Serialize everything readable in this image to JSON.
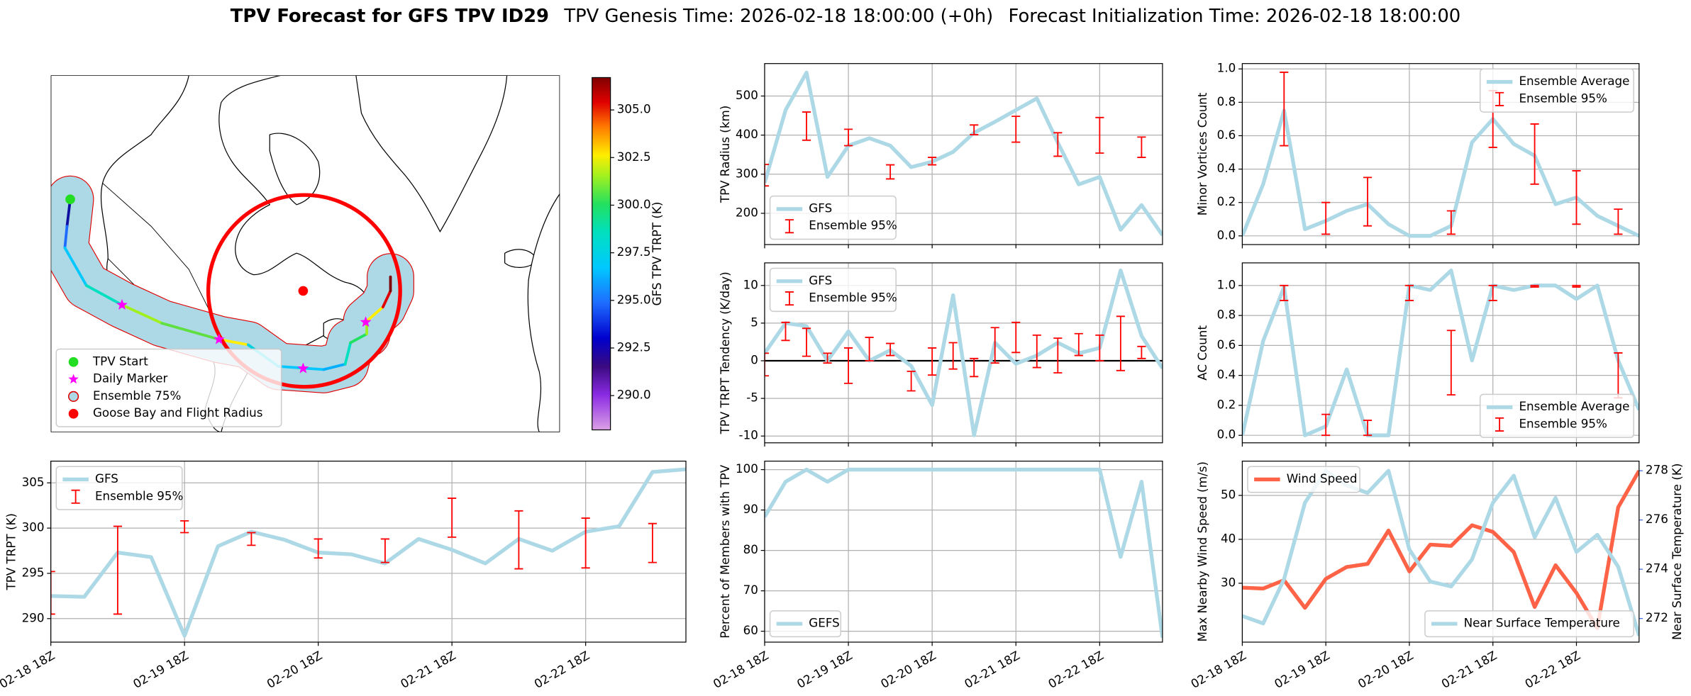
{
  "header": {
    "title": "TPV Forecast for GFS TPV ID29",
    "genesis": "TPV Genesis Time: 2026-02-18 18:00:00 (+0h)",
    "initialization": "Forecast Initialization Time: 2026-02-18 18:00:00"
  },
  "chart_data": [
    {
      "type": "map",
      "legend": "lower left",
      "items": [
        {
          "name": "TPV Start",
          "color": "#22dd22",
          "marker": "circle"
        },
        {
          "name": "Daily Marker",
          "color": "#ff00ff",
          "marker": "star"
        },
        {
          "name": "Ensemble 75%",
          "color": "#add8e6",
          "marker": "circle-edge"
        },
        {
          "name": "Goose Bay and Flight Radius",
          "color": "#ff0000",
          "marker": "circle"
        }
      ],
      "colorbar": {
        "label": "GFS TPV TRPT (K)",
        "lim": [
          288.2,
          306.7
        ],
        "ticks": [
          {
            "value": 290,
            "label": "290.0"
          },
          {
            "value": 292.5,
            "label": "292.5"
          },
          {
            "value": 295,
            "label": "295.0"
          },
          {
            "value": 297.5,
            "label": "297.5"
          },
          {
            "value": 300,
            "label": "300.0"
          },
          {
            "value": 302.5,
            "label": "302.5"
          },
          {
            "value": 305,
            "label": "305.0"
          }
        ]
      }
    },
    {
      "type": "line",
      "ylabel": "TPV Radius (km)",
      "legend": "lower left",
      "grid": true,
      "x": [
        "02-18 18Z",
        "02-19 00Z",
        "02-19 06Z",
        "02-19 12Z",
        "02-19 18Z",
        "02-20 00Z",
        "02-20 06Z",
        "02-20 12Z",
        "02-20 18Z",
        "02-21 00Z",
        "02-21 06Z",
        "02-21 12Z",
        "02-21 18Z",
        "02-22 00Z",
        "02-22 06Z",
        "02-22 12Z",
        "02-22 18Z",
        "02-23 00Z",
        "02-23 06Z",
        "02-23 12Z"
      ],
      "xticks": [
        "02-18 18Z",
        "02-19 18Z",
        "02-20 18Z",
        "02-21 18Z",
        "02-22 18Z"
      ],
      "ylim": [
        120,
        583
      ],
      "yticks": [
        200,
        300,
        400,
        500
      ],
      "series": [
        {
          "name": "GFS",
          "color": "#add8e6",
          "values": [
            278,
            464,
            560,
            293,
            373,
            392,
            373,
            318,
            332,
            357,
            406,
            434,
            464,
            494,
            381,
            274,
            293,
            158,
            221,
            144
          ]
        },
        {
          "name": "Ensemble 95%",
          "color": "#ff0000",
          "low": [
            270,
            null,
            387,
            null,
            373,
            null,
            288,
            null,
            324,
            null,
            401,
            null,
            382,
            null,
            346,
            null,
            354,
            null,
            343,
            null
          ],
          "high": [
            325,
            null,
            459,
            null,
            415,
            null,
            324,
            null,
            343,
            null,
            426,
            null,
            448,
            null,
            406,
            null,
            445,
            null,
            395,
            null
          ]
        }
      ]
    },
    {
      "type": "line",
      "ylabel": "TPV TRPT Tendency (K/day)",
      "legend": "upper left",
      "grid": true,
      "hline": 0,
      "x": [
        "02-18 18Z",
        "02-19 00Z",
        "02-19 06Z",
        "02-19 12Z",
        "02-19 18Z",
        "02-20 00Z",
        "02-20 06Z",
        "02-20 12Z",
        "02-20 18Z",
        "02-21 00Z",
        "02-21 06Z",
        "02-21 12Z",
        "02-21 18Z",
        "02-22 00Z",
        "02-22 06Z",
        "02-22 12Z",
        "02-22 18Z",
        "02-23 00Z",
        "02-23 06Z",
        "02-23 12Z"
      ],
      "xticks": [
        "02-18 18Z",
        "02-19 18Z",
        "02-20 18Z",
        "02-21 18Z",
        "02-22 18Z"
      ],
      "ylim": [
        -10.9,
        13
      ],
      "yticks": [
        -10,
        -5,
        0,
        5,
        10
      ],
      "series": [
        {
          "name": "GFS",
          "color": "#add8e6",
          "values": [
            1,
            5,
            4.6,
            0,
            3.9,
            0,
            1.4,
            -0.7,
            -5.9,
            8.7,
            -9.9,
            2.4,
            -0.4,
            0.7,
            2.4,
            1,
            1.7,
            12,
            3.3,
            -1
          ]
        },
        {
          "name": "Ensemble 95%",
          "color": "#ff0000",
          "low": [
            -2,
            2.7,
            0.6,
            -0.3,
            -3,
            0,
            0.7,
            -4,
            -1.9,
            -1.1,
            -2.1,
            -0.3,
            1.1,
            -0.9,
            -1.6,
            0.7,
            0,
            -1.3,
            0.3,
            null
          ],
          "high": [
            1,
            5.1,
            4.3,
            1,
            1.7,
            3.1,
            2.3,
            -1.4,
            1.7,
            2.4,
            0.3,
            4.4,
            5.1,
            3.4,
            3,
            3.6,
            3.4,
            5.9,
            1.9,
            null
          ]
        }
      ]
    },
    {
      "type": "line",
      "ylabel": "Minor Vortices Count",
      "legend": "upper right",
      "grid": true,
      "x": [
        "02-18 18Z",
        "02-19 00Z",
        "02-19 06Z",
        "02-19 12Z",
        "02-19 18Z",
        "02-20 00Z",
        "02-20 06Z",
        "02-20 12Z",
        "02-20 18Z",
        "02-21 00Z",
        "02-21 06Z",
        "02-21 12Z",
        "02-21 18Z",
        "02-22 00Z",
        "02-22 06Z",
        "02-22 12Z",
        "02-22 18Z",
        "02-23 00Z",
        "02-23 06Z",
        "02-23 12Z"
      ],
      "xticks": [
        "02-18 18Z",
        "02-19 18Z",
        "02-20 18Z",
        "02-21 18Z",
        "02-22 18Z"
      ],
      "ylim": [
        -0.052,
        1.032
      ],
      "yticks": [
        {
          "value": 0,
          "label": "0.0"
        },
        {
          "value": 0.2,
          "label": "0.2"
        },
        {
          "value": 0.4,
          "label": "0.4"
        },
        {
          "value": 0.6,
          "label": "0.6"
        },
        {
          "value": 0.8,
          "label": "0.8"
        },
        {
          "value": 1,
          "label": "1.0"
        }
      ],
      "series": [
        {
          "name": "Ensemble Average",
          "color": "#add8e6",
          "values": [
            0,
            0.31,
            0.75,
            0.04,
            0.09,
            0.15,
            0.19,
            0.07,
            0,
            0,
            0.06,
            0.56,
            0.7,
            0.55,
            0.48,
            0.19,
            0.23,
            0.12,
            0.06,
            0
          ]
        },
        {
          "name": "Ensemble 95%",
          "color": "#ff0000",
          "low": [
            null,
            null,
            0.54,
            null,
            0.01,
            null,
            0.06,
            null,
            null,
            null,
            0.01,
            null,
            0.53,
            null,
            0.31,
            null,
            0.07,
            null,
            0.01,
            null
          ],
          "high": [
            null,
            null,
            0.98,
            null,
            0.2,
            null,
            0.35,
            null,
            null,
            null,
            0.15,
            null,
            0.87,
            null,
            0.67,
            null,
            0.39,
            null,
            0.16,
            null
          ]
        }
      ]
    },
    {
      "type": "line",
      "ylabel": "AC Count",
      "legend": "lower right",
      "grid": true,
      "x": [
        "02-18 18Z",
        "02-19 00Z",
        "02-19 06Z",
        "02-19 12Z",
        "02-19 18Z",
        "02-20 00Z",
        "02-20 06Z",
        "02-20 12Z",
        "02-20 18Z",
        "02-21 00Z",
        "02-21 06Z",
        "02-21 12Z",
        "02-21 18Z",
        "02-22 00Z",
        "02-22 06Z",
        "02-22 12Z",
        "02-22 18Z",
        "02-23 00Z",
        "02-23 06Z",
        "02-23 12Z"
      ],
      "xticks": [
        "02-18 18Z",
        "02-19 18Z",
        "02-20 18Z",
        "02-21 18Z",
        "02-22 18Z"
      ],
      "ylim": [
        -0.05,
        1.151
      ],
      "yticks": [
        {
          "value": 0,
          "label": "0.0"
        },
        {
          "value": 0.2,
          "label": "0.2"
        },
        {
          "value": 0.4,
          "label": "0.4"
        },
        {
          "value": 0.6,
          "label": "0.6"
        },
        {
          "value": 0.8,
          "label": "0.8"
        },
        {
          "value": 1,
          "label": "1.0"
        }
      ],
      "series": [
        {
          "name": "Ensemble Average",
          "color": "#add8e6",
          "values": [
            0,
            0.63,
            0.99,
            0,
            0.06,
            0.44,
            0,
            0,
            1,
            0.97,
            1.1,
            0.5,
            1,
            0.97,
            1,
            1,
            0.91,
            1,
            0.5,
            0.17
          ]
        },
        {
          "name": "Ensemble 95%",
          "color": "#ff0000",
          "low": [
            null,
            null,
            0.9,
            null,
            0,
            null,
            0,
            null,
            0.9,
            null,
            0.27,
            null,
            0.9,
            null,
            0.99,
            null,
            0.99,
            null,
            0.25,
            null
          ],
          "high": [
            null,
            null,
            1,
            null,
            0.14,
            null,
            0.1,
            null,
            1,
            null,
            0.7,
            null,
            1,
            null,
            1,
            null,
            1,
            null,
            0.55,
            null
          ]
        }
      ]
    },
    {
      "type": "line",
      "ylabel": "TPV TRPT (K)",
      "legend": "upper left",
      "grid": true,
      "x": [
        "02-18 18Z",
        "02-19 00Z",
        "02-19 06Z",
        "02-19 12Z",
        "02-19 18Z",
        "02-20 00Z",
        "02-20 06Z",
        "02-20 12Z",
        "02-20 18Z",
        "02-21 00Z",
        "02-21 06Z",
        "02-21 12Z",
        "02-21 18Z",
        "02-22 00Z",
        "02-22 06Z",
        "02-22 12Z",
        "02-22 18Z",
        "02-23 00Z",
        "02-23 06Z",
        "02-23 12Z"
      ],
      "xticks": [
        "02-18 18Z",
        "02-19 18Z",
        "02-20 18Z",
        "02-21 18Z",
        "02-22 18Z"
      ],
      "ylim": [
        287.4,
        307.4
      ],
      "yticks": [
        290,
        295,
        300,
        305
      ],
      "series": [
        {
          "name": "GFS",
          "color": "#add8e6",
          "values": [
            292.5,
            292.4,
            297.3,
            296.8,
            288.1,
            298,
            299.6,
            298.7,
            297.3,
            297.1,
            296.1,
            298.8,
            297.6,
            296.1,
            298.8,
            297.5,
            299.6,
            300.2,
            306.2,
            306.5
          ]
        },
        {
          "name": "Ensemble 95%",
          "color": "#ff0000",
          "low": [
            290.5,
            null,
            290.5,
            null,
            299.5,
            null,
            298.1,
            null,
            296.7,
            null,
            296.2,
            null,
            299,
            null,
            295.5,
            null,
            295.6,
            null,
            296.2,
            null
          ],
          "high": [
            295.2,
            null,
            300.2,
            null,
            300.8,
            null,
            299.5,
            null,
            298.8,
            null,
            298.8,
            null,
            303.3,
            null,
            301.9,
            null,
            301.1,
            null,
            300.5,
            null
          ]
        }
      ]
    },
    {
      "type": "line",
      "ylabel": "Percent of Members with TPV",
      "legend": "lower left",
      "grid": true,
      "x": [
        "02-18 18Z",
        "02-19 00Z",
        "02-19 06Z",
        "02-19 12Z",
        "02-19 18Z",
        "02-20 00Z",
        "02-20 06Z",
        "02-20 12Z",
        "02-20 18Z",
        "02-21 00Z",
        "02-21 06Z",
        "02-21 12Z",
        "02-21 18Z",
        "02-22 00Z",
        "02-22 06Z",
        "02-22 12Z",
        "02-22 18Z",
        "02-23 00Z",
        "02-23 06Z",
        "02-23 12Z"
      ],
      "xticks": [
        "02-18 18Z",
        "02-19 18Z",
        "02-20 18Z",
        "02-21 18Z",
        "02-22 18Z"
      ],
      "ylim": [
        57.3,
        102.1
      ],
      "yticks": [
        60,
        70,
        80,
        90,
        100
      ],
      "series": [
        {
          "name": "GEFS",
          "color": "#add8e6",
          "values": [
            88.3,
            97,
            100,
            97,
            100,
            100,
            100,
            100,
            100,
            100,
            100,
            100,
            100,
            100,
            100,
            100,
            100,
            78.4,
            97,
            58.4
          ]
        }
      ]
    },
    {
      "type": "line",
      "ylabel": "Max Nearby Wind Speed (m/s)",
      "ylabel_color": "#ff6347",
      "y2label": "Near Surface Temperature (K)",
      "y2label_color": "#4169e1",
      "legend": "upper left",
      "grid": true,
      "x": [
        "02-18 18Z",
        "02-19 00Z",
        "02-19 06Z",
        "02-19 12Z",
        "02-19 18Z",
        "02-20 00Z",
        "02-20 06Z",
        "02-20 12Z",
        "02-20 18Z",
        "02-21 00Z",
        "02-21 06Z",
        "02-21 12Z",
        "02-21 18Z",
        "02-22 00Z",
        "02-22 06Z",
        "02-22 12Z",
        "02-22 18Z",
        "02-23 00Z",
        "02-23 06Z",
        "02-23 12Z"
      ],
      "xticks": [
        "02-18 18Z",
        "02-19 18Z",
        "02-20 18Z",
        "02-21 18Z",
        "02-22 18Z"
      ],
      "ylim": [
        16.6,
        57.8
      ],
      "yticks": [
        30,
        40,
        50
      ],
      "y2lim": [
        271.04,
        278.39
      ],
      "y2ticks": [
        272,
        274,
        276,
        278
      ],
      "series": [
        {
          "name": "Wind Speed",
          "color": "#ff6347",
          "values": [
            29,
            28.8,
            30.7,
            24.4,
            31,
            33.7,
            34.4,
            42,
            32.7,
            38.8,
            38.5,
            43.2,
            41.7,
            37.1,
            24.6,
            34.1,
            27.8,
            19.8,
            47.3,
            55.6
          ]
        },
        {
          "name": "Near Surface Temperature",
          "color": "#add8e6",
          "axis": "y2",
          "legend": "lower right",
          "values": [
            272.1,
            271.8,
            273.6,
            276.7,
            278,
            277.4,
            277.1,
            278,
            274.8,
            273.5,
            273.3,
            274.4,
            276.7,
            277.8,
            275.3,
            276.9,
            274.7,
            275.4,
            274.1,
            271.3
          ]
        }
      ]
    }
  ]
}
